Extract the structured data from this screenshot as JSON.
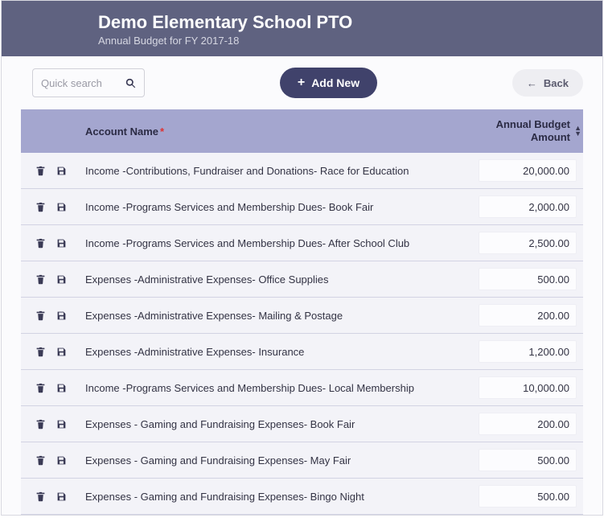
{
  "header": {
    "title": "Demo Elementary School PTO",
    "subtitle": "Annual Budget for FY 2017-18"
  },
  "toolbar": {
    "search_placeholder": "Quick search",
    "add_label": "Add New",
    "back_label": "Back"
  },
  "columns": {
    "name": "Account Name",
    "amount_line1": "Annual Budget",
    "amount_line2": "Amount"
  },
  "rows": [
    {
      "name": "Income -Contributions, Fundraiser and Donations- Race for Education",
      "amount": "20,000.00"
    },
    {
      "name": "Income -Programs Services and Membership Dues- Book Fair",
      "amount": "2,000.00"
    },
    {
      "name": "Income -Programs Services and Membership Dues- After School Club",
      "amount": "2,500.00"
    },
    {
      "name": "Expenses -Administrative Expenses- Office Supplies",
      "amount": "500.00"
    },
    {
      "name": "Expenses -Administrative Expenses- Mailing & Postage",
      "amount": "200.00"
    },
    {
      "name": "Expenses -Administrative Expenses- Insurance",
      "amount": "1,200.00"
    },
    {
      "name": "Income -Programs Services and Membership Dues- Local Membership",
      "amount": "10,000.00"
    },
    {
      "name": "Expenses - Gaming and Fundraising Expenses- Book Fair",
      "amount": "200.00"
    },
    {
      "name": "Expenses - Gaming and Fundraising Expenses- May Fair",
      "amount": "500.00"
    },
    {
      "name": "Expenses - Gaming and Fundraising Expenses- Bingo Night",
      "amount": "500.00"
    }
  ],
  "colors": {
    "header_bg": "#5f6280",
    "thead_bg": "#a4a6cf",
    "row_bg": "#f3f3f8",
    "add_btn_bg": "#40426b",
    "back_btn_bg": "#eeeef2"
  }
}
